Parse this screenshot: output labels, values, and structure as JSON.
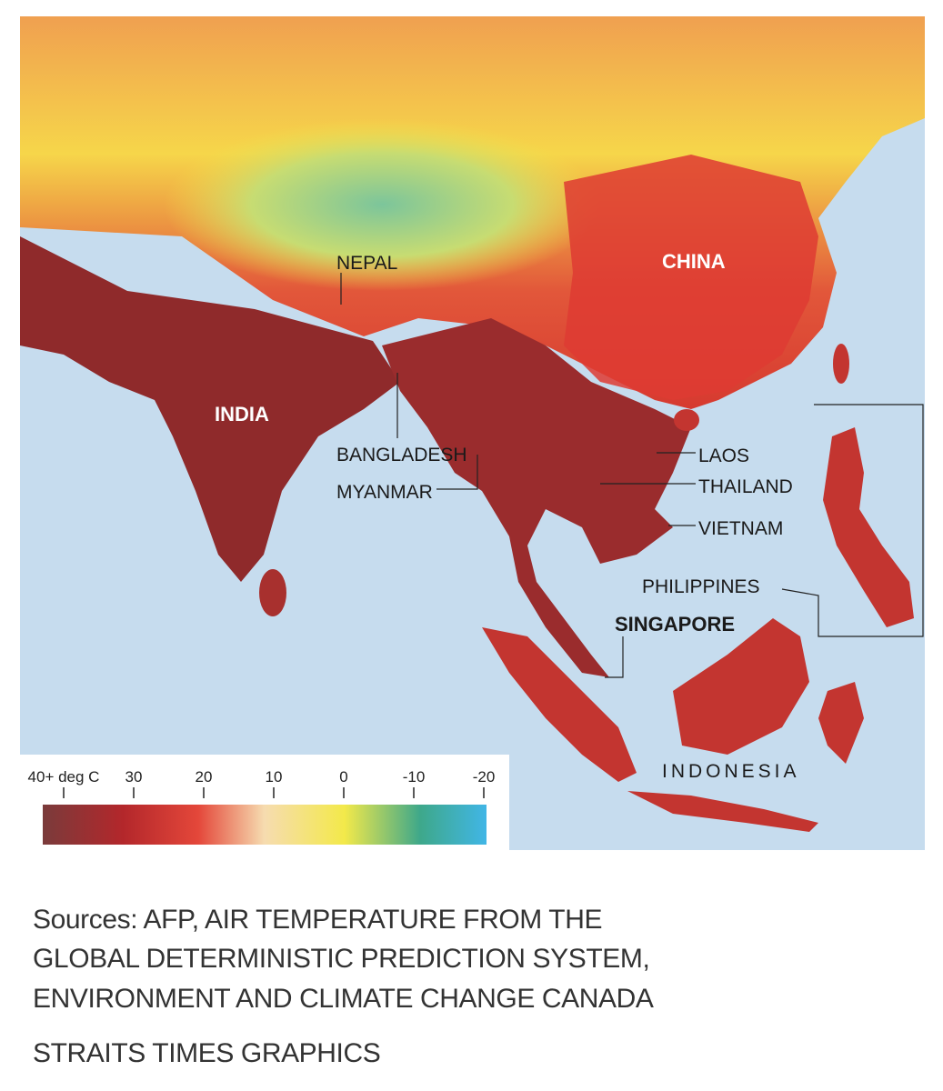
{
  "map": {
    "labels": [
      "NEPAL",
      "CHINA",
      "INDIA",
      "BANGLADESH",
      "MYANMAR",
      "LAOS",
      "THAILAND",
      "VIETNAM",
      "PHILIPPINES",
      "SINGAPORE",
      "INDONESIA"
    ]
  },
  "legend": {
    "ticks": [
      {
        "value": 40,
        "label": "40+ deg C"
      },
      30,
      20,
      10,
      0,
      -10,
      -20
    ]
  },
  "footer": {
    "sources": [
      "Sources: AFP, AIR TEMPERATURE FROM THE",
      "GLOBAL DETERMINISTIC PREDICTION SYSTEM,",
      "ENVIRONMENT AND CLIMATE CHANGE CANADA"
    ],
    "credit": "STRAITS TIMES GRAPHICS"
  }
}
